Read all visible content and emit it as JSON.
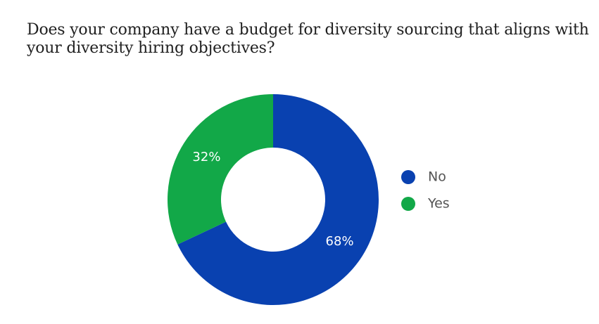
{
  "title": "Does your company have a budget for diversity sourcing that aligns with your diversity hiring objectives?",
  "chart_data": {
    "type": "pie",
    "title": "Does your company have a budget for diversity sourcing that aligns with your diversity hiring objectives?",
    "donut": true,
    "categories": [
      "No",
      "Yes"
    ],
    "values": [
      68,
      32
    ],
    "data_labels": [
      "68%",
      "32%"
    ],
    "colors": [
      "#0941b0",
      "#12a848"
    ],
    "legend": {
      "placement": "right",
      "entries": [
        "No",
        "Yes"
      ]
    }
  }
}
